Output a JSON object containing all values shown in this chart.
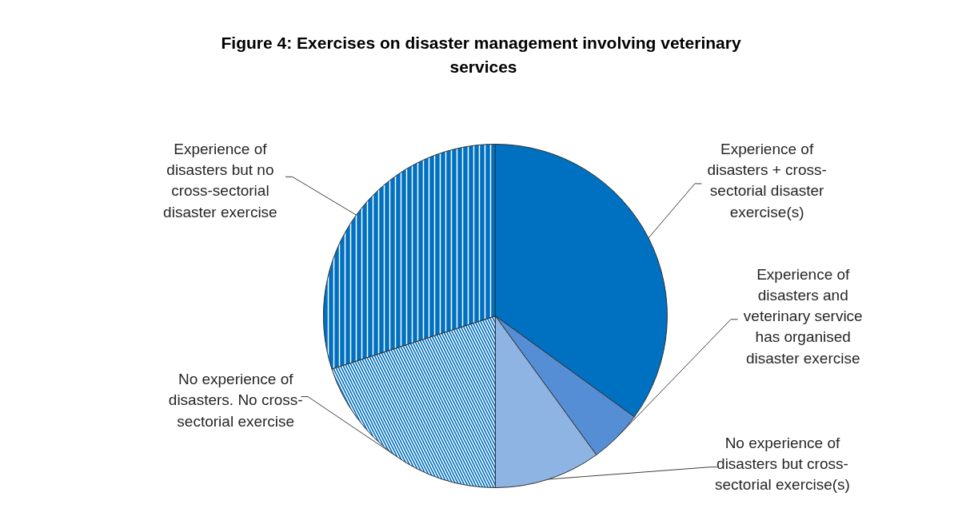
{
  "chart_data": {
    "type": "pie",
    "title": "Figure 4: Exercises on disaster management  involving veterinary services",
    "categories": [
      "Experience of disasters + cross-sectorial disaster exercise(s)",
      "Experience of disasters and veterinary service has organised disaster exercise",
      "No experience of disasters but cross-sectorial exercise(s)",
      "No experience of disasters. No cross-sectorial exercise",
      "Experience of disasters but no cross-sectorial disaster exercise"
    ],
    "values": [
      35,
      5,
      10,
      20,
      30
    ],
    "colors": [
      "#0070c0",
      "#558ed5",
      "#8eb4e3",
      "#0070c0",
      "#0070c0"
    ]
  }
}
